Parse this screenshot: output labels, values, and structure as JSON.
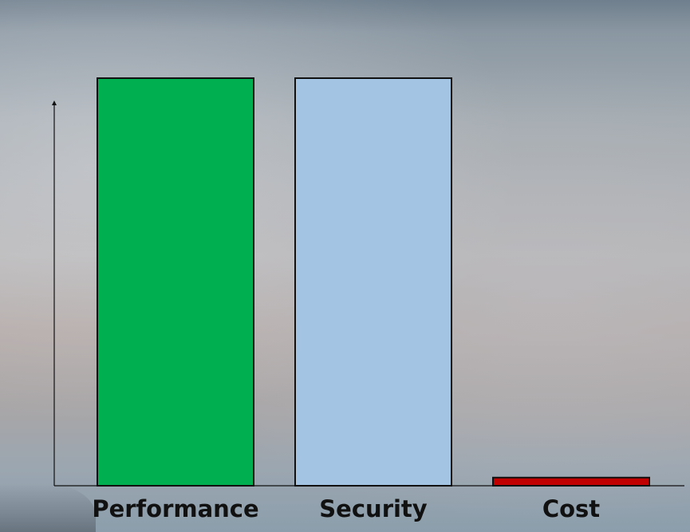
{
  "chart_data": {
    "type": "bar",
    "title": "",
    "xlabel": "",
    "ylabel": "",
    "categories": [
      "Performance",
      "Security",
      "Cost"
    ],
    "values": [
      100,
      100,
      2
    ],
    "ylim": [
      0,
      100
    ],
    "grid": false,
    "legend": "none",
    "y_tick_labels_shown": false,
    "colors": [
      "#00b050",
      "#a3c4e3",
      "#c00000"
    ],
    "bar_border_color": "#111111",
    "axis_color": "#111111"
  }
}
